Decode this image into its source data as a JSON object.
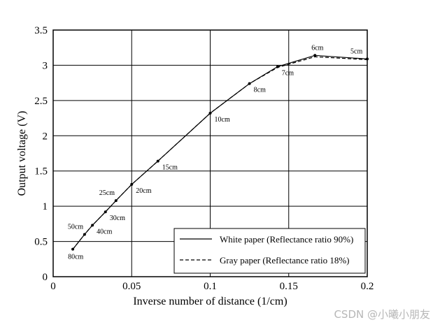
{
  "chart_data": {
    "type": "line",
    "xlabel": "Inverse number of distance (1/cm)",
    "ylabel": "Output voltage (V)",
    "xlim": [
      0,
      0.2
    ],
    "ylim": [
      0,
      3.5
    ],
    "x_ticks": [
      "0",
      "0.05",
      "0.1",
      "0.15",
      "0.2"
    ],
    "y_ticks": [
      "0",
      "0.5",
      "1",
      "1.5",
      "2",
      "2.5",
      "3",
      "3.5"
    ],
    "grid": true,
    "legend_position": "bottom-right",
    "series": [
      {
        "name": "White paper (Reflectance ratio 90%)",
        "style": "solid",
        "color": "#000000",
        "x": [
          0.0125,
          0.02,
          0.025,
          0.0333,
          0.04,
          0.05,
          0.0667,
          0.1,
          0.125,
          0.1429,
          0.1667,
          0.2
        ],
        "y": [
          0.39,
          0.6,
          0.73,
          0.92,
          1.08,
          1.31,
          1.64,
          2.32,
          2.74,
          2.98,
          3.14,
          3.09
        ]
      },
      {
        "name": "Gray paper (Reflectance ratio 18%)",
        "style": "dashed",
        "color": "#000000",
        "x": [
          0.0125,
          0.02,
          0.025,
          0.0333,
          0.04,
          0.05,
          0.0667,
          0.1,
          0.125,
          0.1429,
          0.1667,
          0.2
        ],
        "y": [
          0.39,
          0.6,
          0.73,
          0.92,
          1.08,
          1.31,
          1.64,
          2.32,
          2.74,
          2.97,
          3.12,
          3.08
        ]
      }
    ],
    "point_labels": [
      {
        "text": "80cm",
        "x": 0.0125,
        "y": 0.39,
        "pos": "below"
      },
      {
        "text": "50cm",
        "x": 0.02,
        "y": 0.6,
        "pos": "above-left"
      },
      {
        "text": "40cm",
        "x": 0.025,
        "y": 0.73,
        "pos": "below-right"
      },
      {
        "text": "30cm",
        "x": 0.0333,
        "y": 0.92,
        "pos": "below-right"
      },
      {
        "text": "25cm",
        "x": 0.04,
        "y": 1.08,
        "pos": "above-left"
      },
      {
        "text": "20cm",
        "x": 0.05,
        "y": 1.31,
        "pos": "below-right"
      },
      {
        "text": "15cm",
        "x": 0.0667,
        "y": 1.64,
        "pos": "below-right"
      },
      {
        "text": "10cm",
        "x": 0.1,
        "y": 2.32,
        "pos": "below-right"
      },
      {
        "text": "8cm",
        "x": 0.125,
        "y": 2.74,
        "pos": "below-right"
      },
      {
        "text": "7cm",
        "x": 0.1429,
        "y": 2.98,
        "pos": "below-right"
      },
      {
        "text": "6cm",
        "x": 0.1667,
        "y": 3.14,
        "pos": "above"
      },
      {
        "text": "5cm",
        "x": 0.2,
        "y": 3.09,
        "pos": "above-left"
      }
    ]
  },
  "watermark": "CSDN @小曦小朋友"
}
